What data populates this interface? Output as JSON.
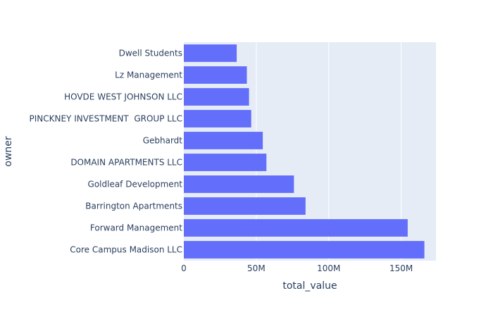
{
  "chart_data": {
    "type": "bar",
    "orientation": "horizontal",
    "xlabel": "total_value",
    "ylabel": "owner",
    "xlim": [
      0,
      174000000
    ],
    "x_ticks": [
      {
        "value": 0,
        "label": "0"
      },
      {
        "value": 50000000,
        "label": "50M"
      },
      {
        "value": 100000000,
        "label": "100M"
      },
      {
        "value": 150000000,
        "label": "150M"
      }
    ],
    "categories": [
      "Dwell Students",
      "Lz Management",
      "HOVDE WEST JOHNSON LLC",
      "PINCKNEY INVESTMENT  GROUP LLC",
      "Gebhardt",
      "DOMAIN APARTMENTS LLC",
      "Goldleaf Development",
      "Barrington Apartments",
      "Forward Management",
      "Core Campus Madison LLC"
    ],
    "values": [
      36500000,
      43500000,
      45000000,
      46500000,
      54500000,
      57000000,
      76000000,
      84000000,
      154500000,
      166000000
    ],
    "colors": {
      "bar": "#636efa",
      "plot_bg": "#e5ecf6",
      "grid": "#ffffff",
      "text": "#2a3f5f"
    },
    "grid": true
  }
}
